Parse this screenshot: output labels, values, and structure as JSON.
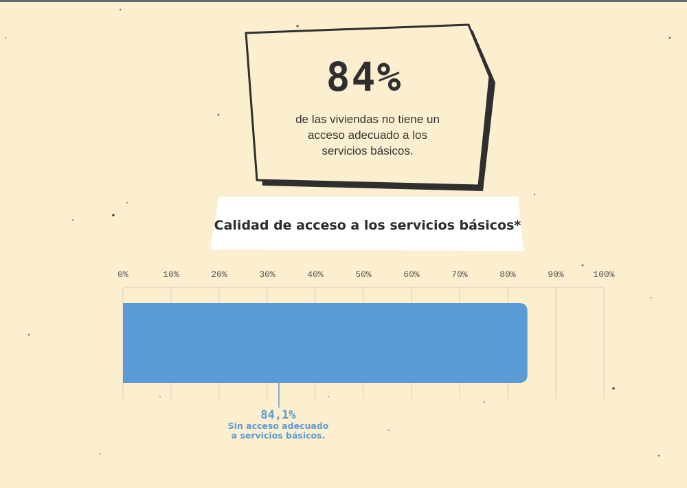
{
  "stat": {
    "value": "84%",
    "description": "de las viviendas no tiene un acceso adecuado a los servicios básicos."
  },
  "chart_data": {
    "type": "bar",
    "orientation": "horizontal",
    "title": "Calidad de acceso a los servicios básicos*",
    "xlabel": "",
    "ylabel": "",
    "xlim": [
      0,
      100
    ],
    "grid": true,
    "ticks": [
      "0%",
      "10%",
      "20%",
      "30%",
      "40%",
      "50%",
      "60%",
      "70%",
      "80%",
      "90%",
      "100%"
    ],
    "values": [
      84.1
    ],
    "annotation": {
      "value_label": "84,1%",
      "text": "Sin acceso adecuado a servicios básicos."
    }
  },
  "colors": {
    "background": "#fcefcf",
    "bar": "#5b9bd5",
    "stat_box": "#fcefcf",
    "outline": "#2f2f2f",
    "title_box": "#ffffff"
  }
}
